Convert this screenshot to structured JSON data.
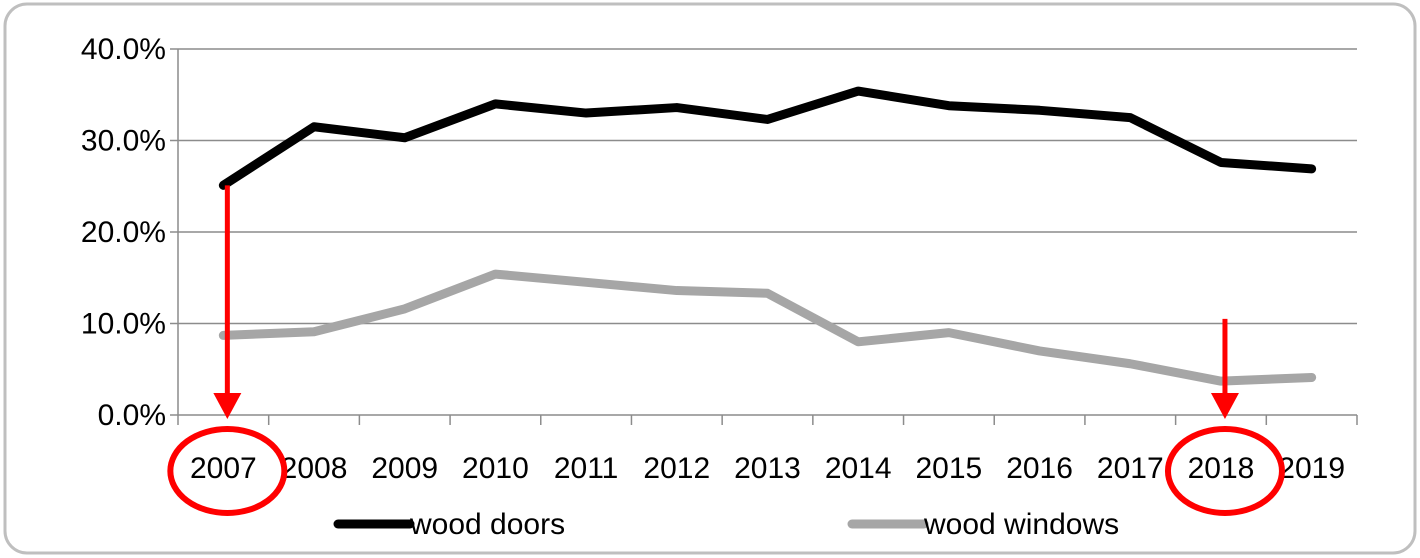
{
  "chart_data": {
    "type": "line",
    "categories": [
      "2007",
      "2008",
      "2009",
      "2010",
      "2011",
      "2012",
      "2013",
      "2014",
      "2015",
      "2016",
      "2017",
      "2018",
      "2019"
    ],
    "series": [
      {
        "name": "wood doors",
        "color": "#000000",
        "values": [
          25.1,
          31.5,
          30.3,
          34.0,
          33.0,
          33.6,
          32.3,
          35.4,
          33.8,
          33.3,
          32.5,
          27.6,
          26.9
        ]
      },
      {
        "name": "wood windows",
        "color": "#a6a6a6",
        "values": [
          8.7,
          9.1,
          11.6,
          15.4,
          14.5,
          13.6,
          13.3,
          8.0,
          9.0,
          7.0,
          5.6,
          3.7,
          4.1
        ]
      }
    ],
    "y_ticks": [
      "0.0%",
      "10.0%",
      "20.0%",
      "30.0%",
      "40.0%"
    ],
    "ylim": [
      0,
      40
    ],
    "grid": true,
    "legend_position": "bottom",
    "annotations": [
      {
        "type": "arrow-and-circle",
        "category": "2007",
        "from_value": 25.1,
        "to_value": 0,
        "color": "#ff0000"
      },
      {
        "type": "arrow-and-circle",
        "category": "2018",
        "from_value": 10.5,
        "to_value": 0,
        "color": "#ff0000"
      }
    ]
  }
}
